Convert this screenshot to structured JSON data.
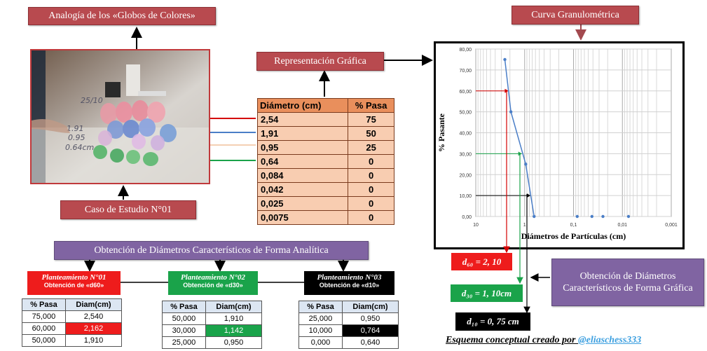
{
  "titles": {
    "analogia": "Analogía de los «Globos de Colores»",
    "caso": "Caso de Estudio N°01",
    "representacion": "Representación Gráfica",
    "curva": "Curva Granulométrica",
    "analitica": "Obtención de Diámetros Característicos de Forma Analítica",
    "grafica": "Obtención de Diámetros Característicos de Forma Gráfica"
  },
  "photo": {
    "handwriting": [
      "25/10",
      "1.91",
      "0.95",
      "0.64cm"
    ]
  },
  "main_table": {
    "headers": [
      "Diámetro (cm)",
      "% Pasa"
    ],
    "rows": [
      [
        "2,54",
        "75"
      ],
      [
        "1,91",
        "50"
      ],
      [
        "0,95",
        "25"
      ],
      [
        "0,64",
        "0"
      ],
      [
        "0,084",
        "0"
      ],
      [
        "0,042",
        "0"
      ],
      [
        "0,025",
        "0"
      ],
      [
        "0,0075",
        "0"
      ]
    ]
  },
  "chart_data": {
    "type": "scatter",
    "x": [
      2.54,
      1.91,
      0.95,
      0.64,
      0.084,
      0.042,
      0.025,
      0.0075
    ],
    "y": [
      75,
      50,
      25,
      0,
      0,
      0,
      0,
      0
    ],
    "xlabel": "Diámetros de Partículas (cm)",
    "ylabel": "% Pasante",
    "x_scale": "log",
    "x_reversed": true,
    "xlim": [
      10,
      0.001
    ],
    "ylim": [
      0,
      80
    ],
    "x_ticks": [
      "10",
      "1",
      "0,1",
      "0,01",
      "0,001"
    ],
    "y_ticks": [
      "0,00",
      "10,00",
      "20,00",
      "30,00",
      "40,00",
      "50,00",
      "60,00",
      "70,00",
      "80,00"
    ],
    "grid": true,
    "series_color": "#4a7ec7",
    "guides": [
      {
        "y": 60,
        "x": 2.162,
        "color": "#d40000"
      },
      {
        "y": 30,
        "x": 1.142,
        "color": "#1aa34a"
      },
      {
        "y": 10,
        "x": 0.764,
        "color": "#000000"
      }
    ]
  },
  "plans": [
    {
      "title": "Planteamiento N°01",
      "subtitle": "Obtención de «d60»",
      "color": "#ee1c1c"
    },
    {
      "title": "Planteamiento N°02",
      "subtitle": "Obtención de «d30»",
      "color": "#1aa34a"
    },
    {
      "title": "Planteamiento N°03",
      "subtitle": "Obtención de «d10»",
      "color": "#000000"
    }
  ],
  "small_tables": [
    {
      "headers": [
        "% Pasa",
        "Diam(cm)"
      ],
      "rows": [
        [
          "75,000",
          "2,540"
        ],
        [
          "60,000",
          "2,162"
        ],
        [
          "50,000",
          "1,910"
        ]
      ],
      "highlight_color": "#ee1c1c",
      "highlight_text": "#ffffff"
    },
    {
      "headers": [
        "% Pasa",
        "Diam(cm)"
      ],
      "rows": [
        [
          "50,000",
          "1,910"
        ],
        [
          "30,000",
          "1,142"
        ],
        [
          "25,000",
          "0,950"
        ]
      ],
      "highlight_color": "#1aa34a",
      "highlight_text": "#ffffff"
    },
    {
      "headers": [
        "% Pasa",
        "Diam(cm)"
      ],
      "rows": [
        [
          "25,000",
          "0,950"
        ],
        [
          "10,000",
          "0,764"
        ],
        [
          "0,000",
          "0,640"
        ]
      ],
      "highlight_color": "#000000",
      "highlight_text": "#ffffff"
    }
  ],
  "results": {
    "d60": "d₆₀ = 2, 10",
    "d30": "d₃₀ = 1, 10cm",
    "d10": "d₁₀ = 0, 75 cm"
  },
  "footer": {
    "text": "Esquema conceptual creado por ",
    "handle": "@eliaschess333"
  }
}
